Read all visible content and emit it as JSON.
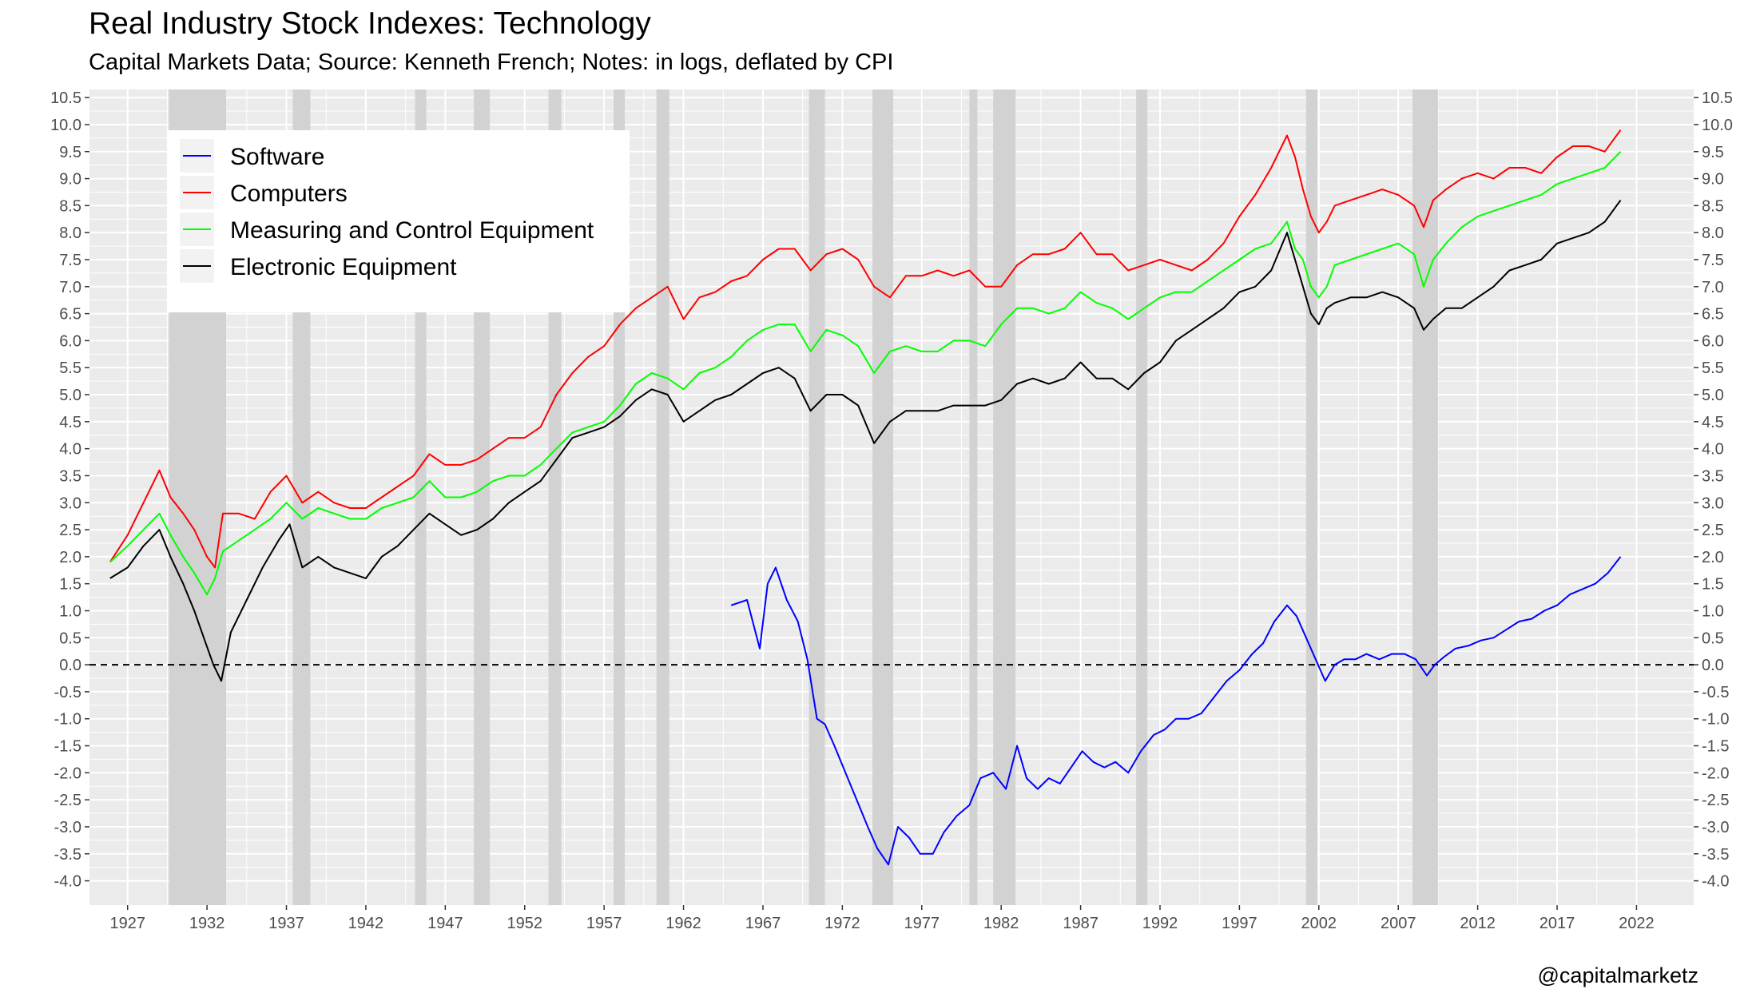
{
  "title": "Real Industry Stock Indexes: Technology",
  "subtitle": "Capital Markets Data; Source: Kenneth French; Notes: in logs, deflated by CPI",
  "caption": "@capitalmarketz",
  "chart_data": {
    "type": "line",
    "xlim": [
      1924.6,
      2025.6
    ],
    "ylim": [
      -4.45,
      10.65
    ],
    "x_ticks": [
      1927,
      1932,
      1937,
      1942,
      1947,
      1952,
      1957,
      1962,
      1967,
      1972,
      1977,
      1982,
      1987,
      1992,
      1997,
      2002,
      2007,
      2012,
      2017,
      2022
    ],
    "y_ticks": [
      -4.0,
      -3.5,
      -3.0,
      -2.5,
      -2.0,
      -1.5,
      -1.0,
      -0.5,
      0.0,
      0.5,
      1.0,
      1.5,
      2.0,
      2.5,
      3.0,
      3.5,
      4.0,
      4.5,
      5.0,
      5.5,
      6.0,
      6.5,
      7.0,
      7.5,
      8.0,
      8.5,
      9.0,
      9.5,
      10.0,
      10.5
    ],
    "grid": true,
    "secondary_y_axis": true,
    "legend_position": "top-left",
    "reference_line": {
      "y": 0,
      "style": "dashed",
      "color": "#000000"
    },
    "recessions": [
      [
        1929.6,
        1933.2
      ],
      [
        1937.4,
        1938.5
      ],
      [
        1945.1,
        1945.8
      ],
      [
        1948.8,
        1949.8
      ],
      [
        1953.5,
        1954.3
      ],
      [
        1957.6,
        1958.3
      ],
      [
        1960.3,
        1961.1
      ],
      [
        1969.9,
        1970.9
      ],
      [
        1973.9,
        1975.2
      ],
      [
        1980.0,
        1980.5
      ],
      [
        1981.5,
        1982.9
      ],
      [
        1990.5,
        1991.2
      ],
      [
        2001.2,
        2001.9
      ],
      [
        2007.9,
        2009.5
      ]
    ],
    "series": [
      {
        "name": "Software",
        "color": "#0000ff",
        "x": [
          1965.0,
          1966.0,
          1966.8,
          1967.3,
          1967.8,
          1968.5,
          1969.2,
          1969.8,
          1970.4,
          1970.9,
          1971.5,
          1972.2,
          1972.9,
          1973.6,
          1974.2,
          1974.9,
          1975.5,
          1976.2,
          1976.9,
          1977.7,
          1978.4,
          1979.2,
          1980.0,
          1980.7,
          1981.5,
          1982.3,
          1983.0,
          1983.6,
          1984.3,
          1985.0,
          1985.7,
          1986.4,
          1987.1,
          1987.8,
          1988.5,
          1989.2,
          1990.0,
          1990.8,
          1991.6,
          1992.3,
          1993.0,
          1993.8,
          1994.6,
          1995.4,
          1996.2,
          1997.0,
          1997.8,
          1998.5,
          1999.2,
          2000.0,
          2000.6,
          2001.2,
          2001.8,
          2002.4,
          2003.0,
          2003.6,
          2004.3,
          2005.0,
          2005.8,
          2006.6,
          2007.4,
          2008.1,
          2008.8,
          2009.3,
          2009.9,
          2010.6,
          2011.4,
          2012.2,
          2013.0,
          2013.8,
          2014.6,
          2015.4,
          2016.2,
          2017.0,
          2017.8,
          2018.6,
          2019.4,
          2020.2,
          2021.0
        ],
        "values": [
          1.1,
          1.2,
          0.3,
          1.5,
          1.8,
          1.2,
          0.8,
          0.1,
          -1.0,
          -1.1,
          -1.5,
          -2.0,
          -2.5,
          -3.0,
          -3.4,
          -3.7,
          -3.0,
          -3.2,
          -3.5,
          -3.5,
          -3.1,
          -2.8,
          -2.6,
          -2.1,
          -2.0,
          -2.3,
          -1.5,
          -2.1,
          -2.3,
          -2.1,
          -2.2,
          -1.9,
          -1.6,
          -1.8,
          -1.9,
          -1.8,
          -2.0,
          -1.6,
          -1.3,
          -1.2,
          -1.0,
          -1.0,
          -0.9,
          -0.6,
          -0.3,
          -0.1,
          0.2,
          0.4,
          0.8,
          1.1,
          0.9,
          0.5,
          0.1,
          -0.3,
          0.0,
          0.1,
          0.1,
          0.2,
          0.1,
          0.2,
          0.2,
          0.1,
          -0.2,
          0.0,
          0.15,
          0.3,
          0.35,
          0.45,
          0.5,
          0.65,
          0.8,
          0.85,
          1.0,
          1.1,
          1.3,
          1.4,
          1.5,
          1.7,
          2.0
        ]
      },
      {
        "name": "Computers",
        "color": "#ff0000",
        "x": [
          1925.9,
          1927.0,
          1928.0,
          1929.0,
          1929.7,
          1930.5,
          1931.2,
          1932.0,
          1932.5,
          1933.0,
          1934.0,
          1935.0,
          1936.0,
          1937.0,
          1938.0,
          1939.0,
          1940.0,
          1941.0,
          1942.0,
          1943.0,
          1944.0,
          1945.0,
          1946.0,
          1947.0,
          1948.0,
          1949.0,
          1950.0,
          1951.0,
          1952.0,
          1953.0,
          1954.0,
          1955.0,
          1956.0,
          1957.0,
          1958.0,
          1959.0,
          1960.0,
          1961.0,
          1962.0,
          1963.0,
          1964.0,
          1965.0,
          1966.0,
          1967.0,
          1968.0,
          1969.0,
          1970.0,
          1971.0,
          1972.0,
          1973.0,
          1974.0,
          1975.0,
          1976.0,
          1977.0,
          1978.0,
          1979.0,
          1980.0,
          1981.0,
          1982.0,
          1983.0,
          1984.0,
          1985.0,
          1986.0,
          1987.0,
          1988.0,
          1989.0,
          1990.0,
          1991.0,
          1992.0,
          1993.0,
          1994.0,
          1995.0,
          1996.0,
          1997.0,
          1998.0,
          1999.0,
          2000.0,
          2000.5,
          2001.0,
          2001.5,
          2002.0,
          2002.5,
          2003.0,
          2004.0,
          2005.0,
          2006.0,
          2007.0,
          2008.0,
          2008.6,
          2009.2,
          2010.0,
          2011.0,
          2012.0,
          2013.0,
          2014.0,
          2015.0,
          2016.0,
          2017.0,
          2018.0,
          2019.0,
          2020.0,
          2021.0
        ],
        "values": [
          1.9,
          2.4,
          3.0,
          3.6,
          3.1,
          2.8,
          2.5,
          2.0,
          1.8,
          2.8,
          2.8,
          2.7,
          3.2,
          3.5,
          3.0,
          3.2,
          3.0,
          2.9,
          2.9,
          3.1,
          3.3,
          3.5,
          3.9,
          3.7,
          3.7,
          3.8,
          4.0,
          4.2,
          4.2,
          4.4,
          5.0,
          5.4,
          5.7,
          5.9,
          6.3,
          6.6,
          6.8,
          7.0,
          6.4,
          6.8,
          6.9,
          7.1,
          7.2,
          7.5,
          7.7,
          7.7,
          7.3,
          7.6,
          7.7,
          7.5,
          7.0,
          6.8,
          7.2,
          7.2,
          7.3,
          7.2,
          7.3,
          7.0,
          7.0,
          7.4,
          7.6,
          7.6,
          7.7,
          8.0,
          7.6,
          7.6,
          7.3,
          7.4,
          7.5,
          7.4,
          7.3,
          7.5,
          7.8,
          8.3,
          8.7,
          9.2,
          9.8,
          9.4,
          8.8,
          8.3,
          8.0,
          8.2,
          8.5,
          8.6,
          8.7,
          8.8,
          8.7,
          8.5,
          8.1,
          8.6,
          8.8,
          9.0,
          9.1,
          9.0,
          9.2,
          9.2,
          9.1,
          9.4,
          9.6,
          9.6,
          9.5,
          9.9
        ]
      },
      {
        "name": "Measuring and Control Equipment",
        "color": "#00ff00",
        "x": [
          1925.9,
          1927.0,
          1928.0,
          1929.0,
          1929.7,
          1930.5,
          1931.2,
          1932.0,
          1932.5,
          1933.0,
          1934.0,
          1935.0,
          1936.0,
          1937.0,
          1938.0,
          1939.0,
          1940.0,
          1941.0,
          1942.0,
          1943.0,
          1944.0,
          1945.0,
          1946.0,
          1947.0,
          1948.0,
          1949.0,
          1950.0,
          1951.0,
          1952.0,
          1953.0,
          1954.0,
          1955.0,
          1956.0,
          1957.0,
          1958.0,
          1959.0,
          1960.0,
          1961.0,
          1962.0,
          1963.0,
          1964.0,
          1965.0,
          1966.0,
          1967.0,
          1968.0,
          1969.0,
          1970.0,
          1971.0,
          1972.0,
          1973.0,
          1974.0,
          1975.0,
          1976.0,
          1977.0,
          1978.0,
          1979.0,
          1980.0,
          1981.0,
          1982.0,
          1983.0,
          1984.0,
          1985.0,
          1986.0,
          1987.0,
          1988.0,
          1989.0,
          1990.0,
          1991.0,
          1992.0,
          1993.0,
          1994.0,
          1995.0,
          1996.0,
          1997.0,
          1998.0,
          1999.0,
          2000.0,
          2000.5,
          2001.0,
          2001.5,
          2002.0,
          2002.5,
          2003.0,
          2004.0,
          2005.0,
          2006.0,
          2007.0,
          2008.0,
          2008.6,
          2009.2,
          2010.0,
          2011.0,
          2012.0,
          2013.0,
          2014.0,
          2015.0,
          2016.0,
          2017.0,
          2018.0,
          2019.0,
          2020.0,
          2021.0
        ],
        "values": [
          1.9,
          2.2,
          2.5,
          2.8,
          2.4,
          2.0,
          1.7,
          1.3,
          1.6,
          2.1,
          2.3,
          2.5,
          2.7,
          3.0,
          2.7,
          2.9,
          2.8,
          2.7,
          2.7,
          2.9,
          3.0,
          3.1,
          3.4,
          3.1,
          3.1,
          3.2,
          3.4,
          3.5,
          3.5,
          3.7,
          4.0,
          4.3,
          4.4,
          4.5,
          4.8,
          5.2,
          5.4,
          5.3,
          5.1,
          5.4,
          5.5,
          5.7,
          6.0,
          6.2,
          6.3,
          6.3,
          5.8,
          6.2,
          6.1,
          5.9,
          5.4,
          5.8,
          5.9,
          5.8,
          5.8,
          6.0,
          6.0,
          5.9,
          6.3,
          6.6,
          6.6,
          6.5,
          6.6,
          6.9,
          6.7,
          6.6,
          6.4,
          6.6,
          6.8,
          6.9,
          6.9,
          7.1,
          7.3,
          7.5,
          7.7,
          7.8,
          8.2,
          7.7,
          7.5,
          7.0,
          6.8,
          7.0,
          7.4,
          7.5,
          7.6,
          7.7,
          7.8,
          7.6,
          7.0,
          7.5,
          7.8,
          8.1,
          8.3,
          8.4,
          8.5,
          8.6,
          8.7,
          8.9,
          9.0,
          9.1,
          9.2,
          9.5
        ]
      },
      {
        "name": "Electronic Equipment",
        "color": "#000000",
        "x": [
          1925.9,
          1927.0,
          1928.0,
          1929.0,
          1929.7,
          1930.5,
          1931.2,
          1931.8,
          1932.4,
          1932.9,
          1933.5,
          1934.5,
          1935.5,
          1936.5,
          1937.2,
          1938.0,
          1939.0,
          1940.0,
          1941.0,
          1942.0,
          1943.0,
          1944.0,
          1945.0,
          1946.0,
          1947.0,
          1948.0,
          1949.0,
          1950.0,
          1951.0,
          1952.0,
          1953.0,
          1954.0,
          1955.0,
          1956.0,
          1957.0,
          1958.0,
          1959.0,
          1960.0,
          1961.0,
          1962.0,
          1963.0,
          1964.0,
          1965.0,
          1966.0,
          1967.0,
          1968.0,
          1969.0,
          1970.0,
          1971.0,
          1972.0,
          1973.0,
          1974.0,
          1975.0,
          1976.0,
          1977.0,
          1978.0,
          1979.0,
          1980.0,
          1981.0,
          1982.0,
          1983.0,
          1984.0,
          1985.0,
          1986.0,
          1987.0,
          1988.0,
          1989.0,
          1990.0,
          1991.0,
          1992.0,
          1993.0,
          1994.0,
          1995.0,
          1996.0,
          1997.0,
          1998.0,
          1999.0,
          2000.0,
          2000.5,
          2001.0,
          2001.5,
          2002.0,
          2002.5,
          2003.0,
          2004.0,
          2005.0,
          2006.0,
          2007.0,
          2008.0,
          2008.6,
          2009.2,
          2010.0,
          2011.0,
          2012.0,
          2013.0,
          2014.0,
          2015.0,
          2016.0,
          2017.0,
          2018.0,
          2019.0,
          2020.0,
          2021.0
        ],
        "values": [
          1.6,
          1.8,
          2.2,
          2.5,
          2.0,
          1.5,
          1.0,
          0.5,
          0.0,
          -0.3,
          0.6,
          1.2,
          1.8,
          2.3,
          2.6,
          1.8,
          2.0,
          1.8,
          1.7,
          1.6,
          2.0,
          2.2,
          2.5,
          2.8,
          2.6,
          2.4,
          2.5,
          2.7,
          3.0,
          3.2,
          3.4,
          3.8,
          4.2,
          4.3,
          4.4,
          4.6,
          4.9,
          5.1,
          5.0,
          4.5,
          4.7,
          4.9,
          5.0,
          5.2,
          5.4,
          5.5,
          5.3,
          4.7,
          5.0,
          5.0,
          4.8,
          4.1,
          4.5,
          4.7,
          4.7,
          4.7,
          4.8,
          4.8,
          4.8,
          4.9,
          5.2,
          5.3,
          5.2,
          5.3,
          5.6,
          5.3,
          5.3,
          5.1,
          5.4,
          5.6,
          6.0,
          6.2,
          6.4,
          6.6,
          6.9,
          7.0,
          7.3,
          8.0,
          7.5,
          7.0,
          6.5,
          6.3,
          6.6,
          6.7,
          6.8,
          6.8,
          6.9,
          6.8,
          6.6,
          6.2,
          6.4,
          6.6,
          6.6,
          6.8,
          7.0,
          7.3,
          7.4,
          7.5,
          7.8,
          7.9,
          8.0,
          8.2,
          8.6
        ]
      }
    ]
  }
}
